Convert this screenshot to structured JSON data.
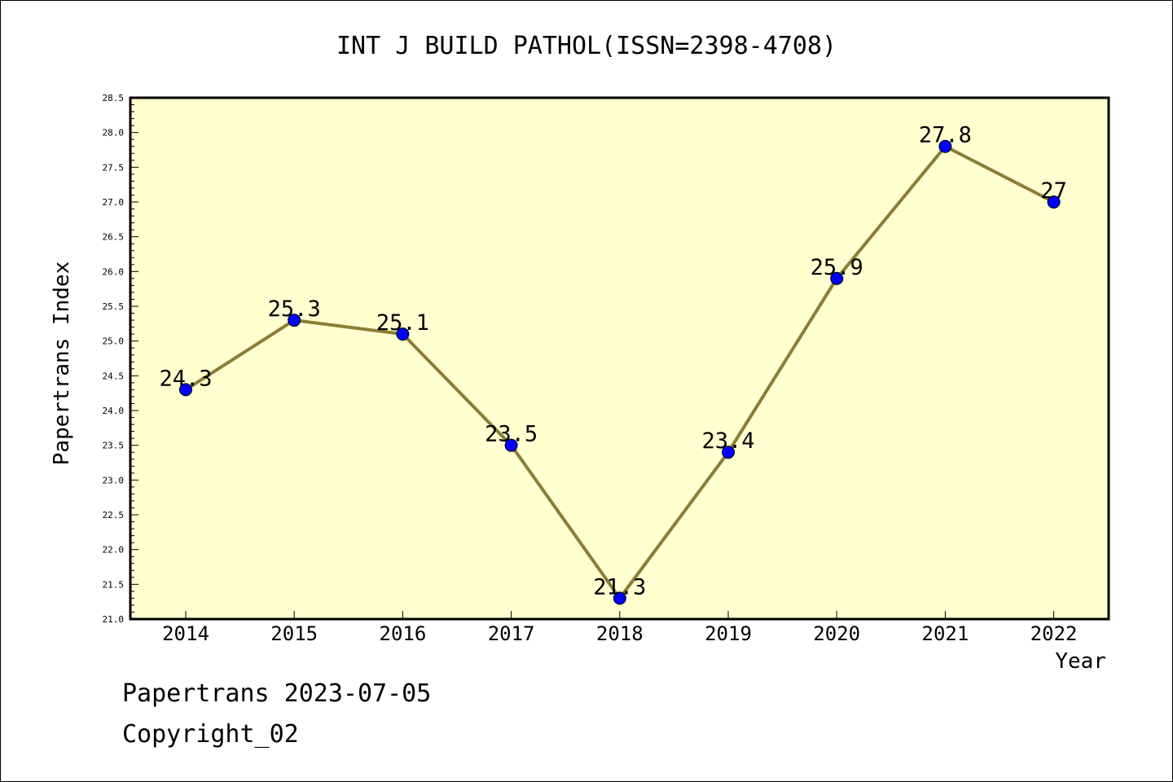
{
  "chart_data": {
    "type": "line",
    "title": "INT J BUILD PATHOL(ISSN=2398-4708)",
    "xlabel": "Year",
    "ylabel": "Papertrans Index",
    "x": [
      "2014",
      "2015",
      "2016",
      "2017",
      "2018",
      "2019",
      "2020",
      "2021",
      "2022"
    ],
    "series": [
      {
        "values": [
          24.3,
          25.3,
          25.1,
          23.5,
          21.3,
          23.4,
          25.9,
          27.8,
          27
        ],
        "labels": [
          "24.3",
          "25.3",
          "25.1",
          "23.5",
          "21.3",
          "23.4",
          "25.9",
          "27.8",
          "27"
        ]
      }
    ],
    "ylim": [
      21.0,
      28.5
    ],
    "yticks": [
      "21.0",
      "21.5",
      "22.0",
      "22.5",
      "23.0",
      "23.5",
      "24.0",
      "24.5",
      "25.0",
      "25.5",
      "26.0",
      "26.5",
      "27.0",
      "27.5",
      "28.0",
      "28.5"
    ],
    "grid": false,
    "colors": {
      "plot_background": "#ffffd0",
      "line": "#8b7d35",
      "marker": "#0000ff"
    }
  },
  "footer": {
    "line1": "Papertrans 2023-07-05",
    "line2": "Copyright_02"
  }
}
